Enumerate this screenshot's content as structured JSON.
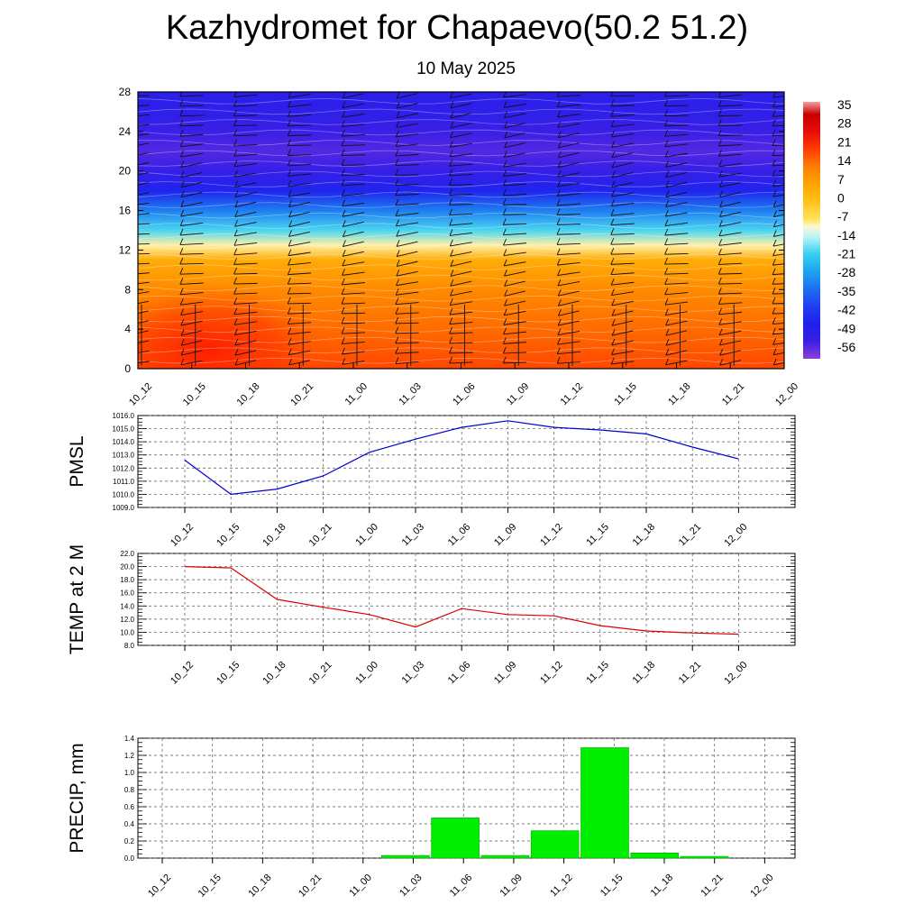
{
  "title": "Kazhydromet for Chapaevo(50.2 51.2)",
  "subtitle": "10 May 2025",
  "colors": {
    "pmsl_line": "#0000cc",
    "temp_line": "#dd0000",
    "precip_bar": "#00ee00",
    "precip_bar_edge": "#00aa00",
    "warm": "#ff8800",
    "hot": "#ff2200",
    "cold": "#2222ee",
    "coldest": "#6633dd"
  },
  "time_labels": [
    "10_12",
    "10_15",
    "10_18",
    "10_21",
    "11_00",
    "11_03",
    "11_06",
    "11_09",
    "11_12",
    "11_15",
    "11_18",
    "11_21",
    "12_00"
  ],
  "chart_data": [
    {
      "type": "heatmap",
      "title": "",
      "xlabel": "",
      "ylabel": "",
      "x": [
        "10_12",
        "10_15",
        "10_18",
        "10_21",
        "11_00",
        "11_03",
        "11_06",
        "11_09",
        "11_12",
        "11_15",
        "11_18",
        "11_21",
        "12_00"
      ],
      "ylim": [
        0,
        28
      ],
      "yticks": [
        0,
        4,
        8,
        12,
        16,
        20,
        24,
        28
      ],
      "colorbar_ticks": [
        35,
        28,
        21,
        14,
        7,
        0,
        -7,
        -14,
        -21,
        -28,
        -35,
        -42,
        -49,
        -56
      ],
      "colorbar_range": [
        -63,
        40
      ],
      "level_temperature": [
        {
          "y": 0,
          "t": 20
        },
        {
          "y": 4,
          "t": 16
        },
        {
          "y": 8,
          "t": 12
        },
        {
          "y": 11,
          "t": 5
        },
        {
          "y": 12.5,
          "t": -9
        },
        {
          "y": 14,
          "t": -20
        },
        {
          "y": 16,
          "t": -33
        },
        {
          "y": 18,
          "t": -48
        },
        {
          "y": 20,
          "t": -55
        },
        {
          "y": 22,
          "t": -58
        },
        {
          "y": 24,
          "t": -56
        },
        {
          "y": 26,
          "t": -53
        },
        {
          "y": 28,
          "t": -52
        }
      ],
      "warm_spot": {
        "x": "10_15",
        "y": 2,
        "t": 25
      }
    },
    {
      "type": "line",
      "ylabel": "PMSL",
      "xlabel": "",
      "categories": [
        "10_12",
        "10_15",
        "10_18",
        "10_21",
        "11_00",
        "11_03",
        "11_06",
        "11_09",
        "11_12",
        "11_15",
        "11_18",
        "11_21",
        "12_00"
      ],
      "ylim": [
        1009.0,
        1016.0
      ],
      "yticks": [
        "1009.0",
        "1010.0",
        "1011.0",
        "1012.0",
        "1013.0",
        "1014.0",
        "1015.0",
        "1016.0"
      ],
      "series": [
        {
          "values": [
            1012.6,
            1010.0,
            1010.4,
            1011.4,
            1013.2,
            1014.2,
            1015.1,
            1015.6,
            1015.1,
            1014.9,
            1014.6,
            1013.6,
            1012.7
          ]
        }
      ],
      "grid": true
    },
    {
      "type": "line",
      "ylabel": "TEMP at 2 M",
      "xlabel": "",
      "categories": [
        "10_12",
        "10_15",
        "10_18",
        "10_21",
        "11_00",
        "11_03",
        "11_06",
        "11_09",
        "11_12",
        "11_15",
        "11_18",
        "11_21",
        "12_00"
      ],
      "ylim": [
        8.0,
        22.0
      ],
      "yticks": [
        "8.0",
        "10.0",
        "12.0",
        "14.0",
        "16.0",
        "18.0",
        "20.0",
        "22.0"
      ],
      "series": [
        {
          "values": [
            20.0,
            19.8,
            15.0,
            13.8,
            12.7,
            10.8,
            13.6,
            12.7,
            12.5,
            11.0,
            10.2,
            9.9,
            9.7
          ]
        }
      ],
      "grid": true
    },
    {
      "type": "bar",
      "ylabel": "PRECIP, mm",
      "xlabel": "",
      "categories": [
        "10_12",
        "10_15",
        "10_18",
        "10_21",
        "11_00",
        "11_03",
        "11_06",
        "11_09",
        "11_12",
        "11_15",
        "11_18",
        "11_21",
        "12_00"
      ],
      "ylim": [
        0.0,
        1.4
      ],
      "yticks": [
        "0.0",
        "0.2",
        "0.4",
        "0.6",
        "0.8",
        "1.0",
        "1.2",
        "1.4"
      ],
      "values": [
        0.0,
        0.0,
        0.0,
        0.0,
        0.03,
        0.47,
        0.03,
        0.32,
        1.29,
        0.06,
        0.02,
        0.0,
        0.0
      ],
      "grid": true
    }
  ]
}
